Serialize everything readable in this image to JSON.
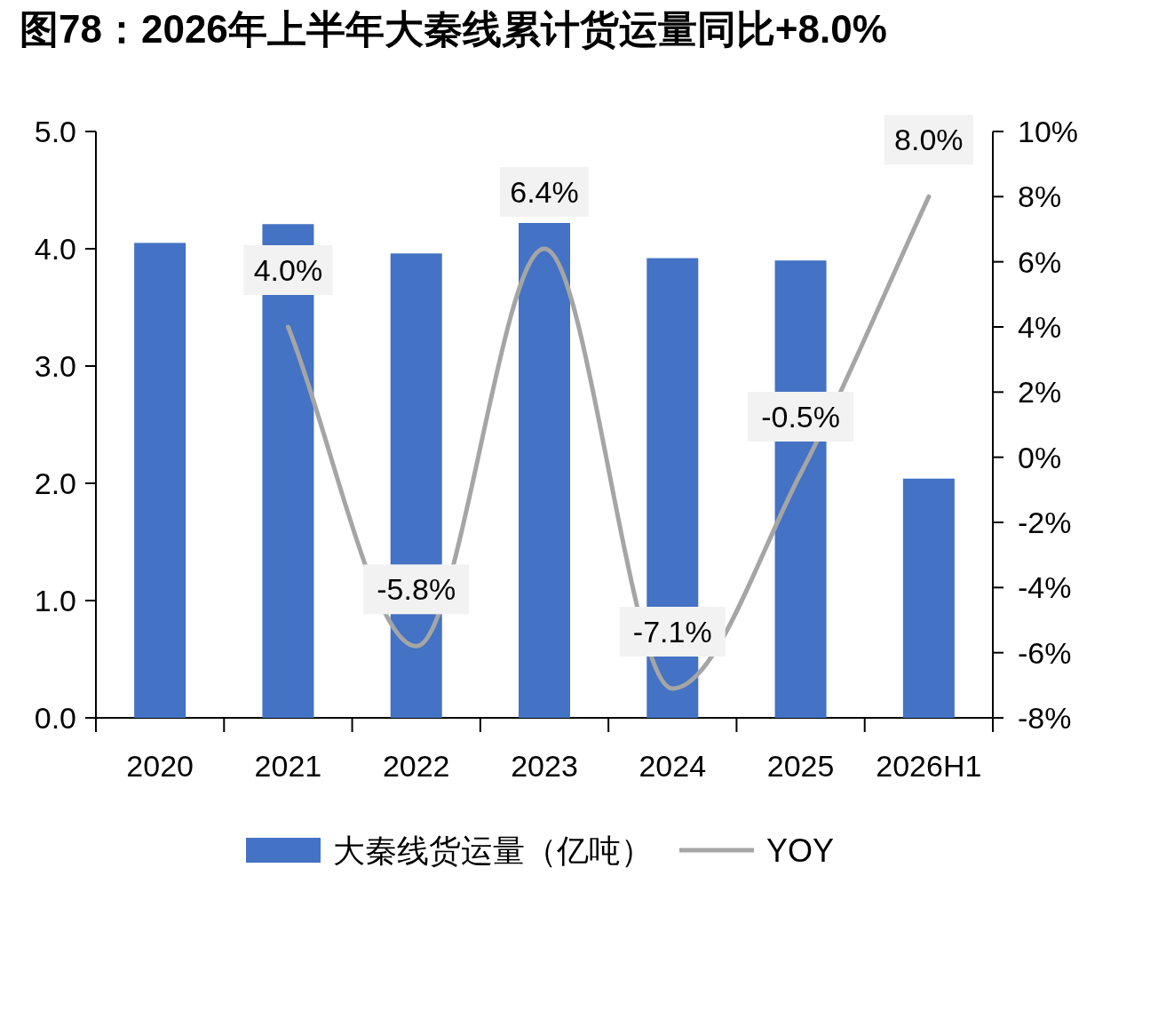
{
  "chart_data": {
    "type": "bar",
    "title": "图78：2026年上半年大秦线累计货运量同比+8.0%",
    "categories": [
      "2020",
      "2021",
      "2022",
      "2023",
      "2024",
      "2025",
      "2026H1"
    ],
    "series": [
      {
        "name": "大秦线货运量（亿吨）",
        "color": "#4472c4",
        "values": [
          4.05,
          4.21,
          3.96,
          4.22,
          3.92,
          3.9,
          2.04
        ]
      },
      {
        "name": "YOY",
        "type": "line",
        "axis": "y2",
        "color": "#a5a5a5",
        "values": [
          null,
          4.0,
          -5.8,
          6.4,
          -7.1,
          -0.5,
          8.0
        ],
        "value_labels": [
          null,
          "4.0%",
          "-5.8%",
          "6.4%",
          "-7.1%",
          "-0.5%",
          "8.0%"
        ]
      }
    ],
    "ylim": [
      0,
      5
    ],
    "yticks": [
      {
        "value": 0,
        "label": "0.0"
      },
      {
        "value": 1,
        "label": "1.0"
      },
      {
        "value": 2,
        "label": "2.0"
      },
      {
        "value": 3,
        "label": "3.0"
      },
      {
        "value": 4,
        "label": "4.0"
      },
      {
        "value": 5,
        "label": "5.0"
      }
    ],
    "y2lim": [
      -8,
      10
    ],
    "y2ticks": [
      {
        "value": -8,
        "label": "-8%"
      },
      {
        "value": -6,
        "label": "-6%"
      },
      {
        "value": -4,
        "label": "-4%"
      },
      {
        "value": -2,
        "label": "-2%"
      },
      {
        "value": 0,
        "label": "0%"
      },
      {
        "value": 2,
        "label": "2%"
      },
      {
        "value": 4,
        "label": "4%"
      },
      {
        "value": 6,
        "label": "6%"
      },
      {
        "value": 8,
        "label": "8%"
      },
      {
        "value": 10,
        "label": "10%"
      }
    ],
    "legend": "bottom"
  }
}
